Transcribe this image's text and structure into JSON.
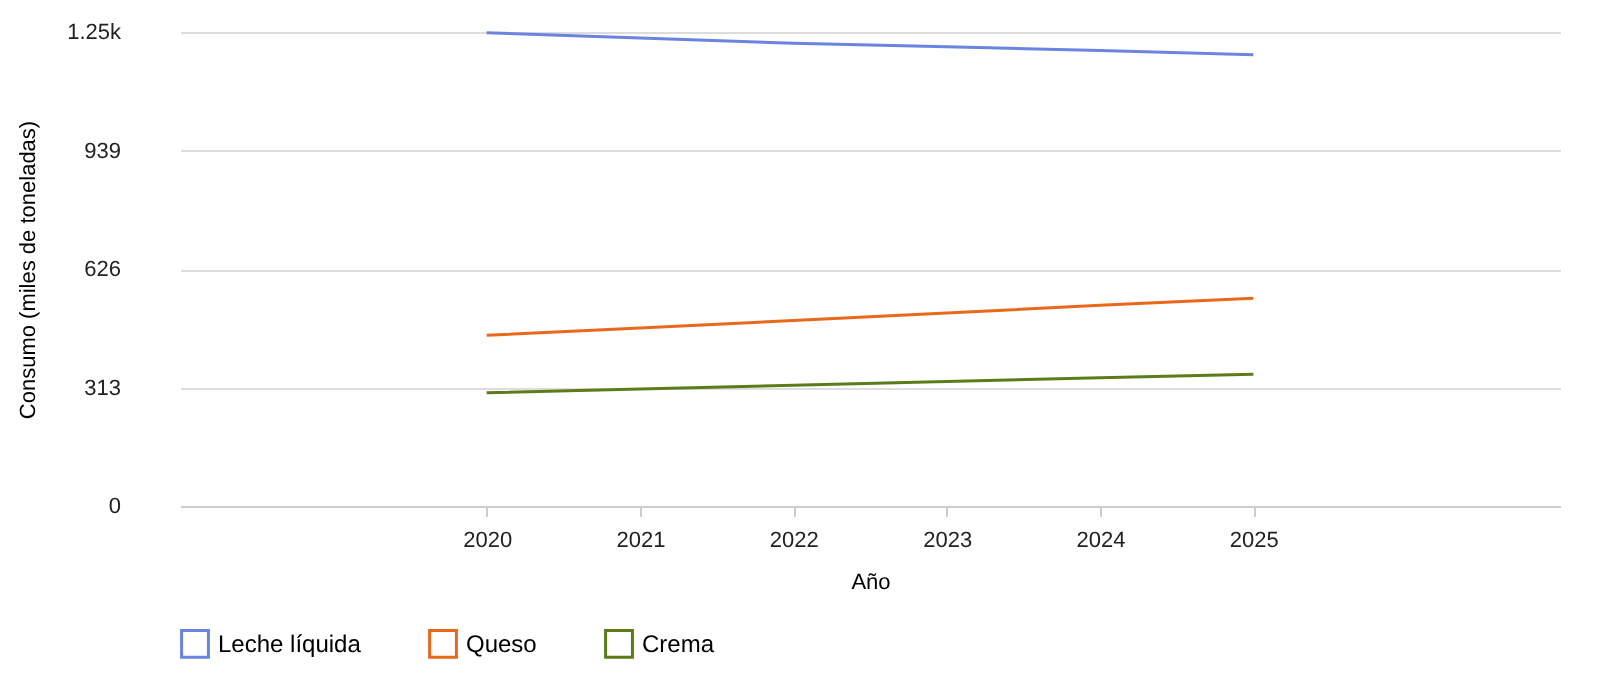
{
  "chart_data": {
    "type": "line",
    "xlabel": "Año",
    "ylabel": "Consumo (miles de toneladas)",
    "x": [
      2020,
      2021,
      2022,
      2023,
      2024,
      2025
    ],
    "xlim": [
      2018,
      2027
    ],
    "xticks": [
      2020,
      2021,
      2022,
      2023,
      2024,
      2025
    ],
    "ylim": [
      0,
      1252
    ],
    "yticks": [
      0,
      313,
      626,
      939,
      {
        "value": 1252,
        "label": "1.25k"
      }
    ],
    "grid": "y",
    "legend": "bottom",
    "marker": "none",
    "line_style": "solid",
    "series": [
      {
        "name": "Leche líquida",
        "color": "#6b84e0",
        "values": [
          1250,
          1236,
          1222,
          1213,
          1203,
          1192
        ]
      },
      {
        "name": "Queso",
        "color": "#e8691c",
        "values": [
          451,
          470,
          490,
          510,
          530,
          549
        ]
      },
      {
        "name": "Crema",
        "color": "#5a7d1a",
        "values": [
          299,
          309,
          319,
          329,
          339,
          348
        ]
      }
    ]
  }
}
